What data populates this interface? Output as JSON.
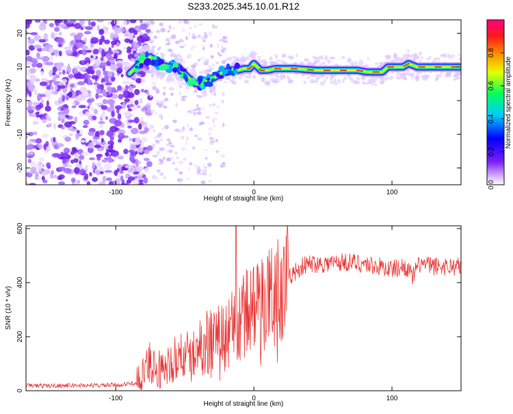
{
  "title": "S233.2025.345.10.01.R12",
  "chart_data": [
    {
      "type": "heatmap",
      "xlabel": "Height of straight line (km)",
      "ylabel": "Frequency (Hz)",
      "xlim": [
        -165,
        150
      ],
      "ylim": [
        -25,
        24
      ],
      "xticks": [
        -100,
        0,
        100
      ],
      "yticks": [
        -20,
        -10,
        0,
        10,
        20
      ],
      "colorbar": {
        "label": "Normalized spectral amplitude",
        "range": [
          0,
          1
        ],
        "ticks": [
          0.0,
          0.2,
          0.4,
          0.6,
          0.8
        ]
      },
      "ridge": {
        "x": [
          -90,
          -80,
          -75,
          -70,
          -62,
          -55,
          -48,
          -42,
          -38,
          -33,
          -28,
          -22,
          -17,
          -12,
          -7,
          -3,
          0,
          5,
          10,
          15,
          20,
          30,
          45,
          60,
          75,
          82,
          88,
          93,
          97,
          103,
          108,
          112,
          118,
          128,
          140,
          150
        ],
        "y": [
          8,
          12,
          13,
          11,
          10,
          10,
          7,
          5,
          5,
          6,
          7,
          8.5,
          9,
          9,
          9.5,
          9.5,
          11,
          9,
          9,
          9.5,
          9.5,
          9.5,
          9,
          9,
          9,
          8.5,
          8.5,
          8.5,
          10,
          10,
          10,
          11,
          10,
          10,
          10,
          10
        ]
      }
    },
    {
      "type": "line",
      "xlabel": "Height of straight line (km)",
      "ylabel": "SNR (10 * v/v)",
      "xlim": [
        -165,
        150
      ],
      "ylim": [
        0,
        610
      ],
      "xticks": [
        -100,
        0,
        100
      ],
      "yticks": [
        0,
        200,
        400,
        600
      ],
      "color": "#e8312f",
      "series": [
        {
          "x": [
            -165,
            -150,
            -130,
            -110,
            -95,
            -85,
            -80,
            -75,
            -70,
            -65,
            -60,
            -55,
            -50,
            -45,
            -40,
            -35,
            -30,
            -25,
            -20,
            -15,
            -10,
            -5,
            0,
            5,
            10,
            15,
            20,
            25,
            30,
            35,
            40,
            50,
            60,
            70,
            80,
            90,
            100,
            110,
            115,
            120,
            130,
            140,
            150
          ],
          "y": [
            20,
            18,
            20,
            20,
            22,
            30,
            60,
            100,
            90,
            70,
            100,
            120,
            130,
            120,
            150,
            180,
            190,
            200,
            210,
            230,
            260,
            290,
            300,
            320,
            340,
            360,
            390,
            420,
            440,
            460,
            470,
            470,
            475,
            475,
            470,
            460,
            450,
            460,
            420,
            470,
            460,
            460,
            460
          ]
        }
      ]
    }
  ]
}
